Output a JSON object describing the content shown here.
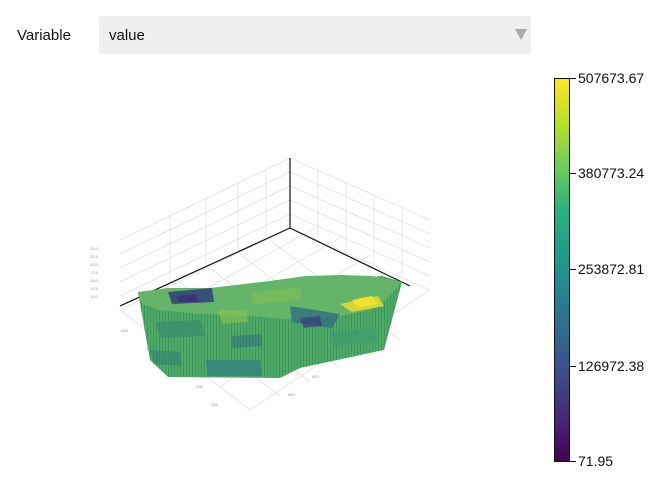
{
  "controls": {
    "variable_label": "Variable",
    "variable_value": "value"
  },
  "colorbar": {
    "colormap": "viridis",
    "min": 71.95,
    "max": 507673.67,
    "ticks": [
      "507673.67",
      "380773.24",
      "253872.81",
      "126972.38",
      "71.95"
    ]
  },
  "colors": {
    "dominant_fill": "#5bb36a",
    "high_value_patch": "#d9d73a",
    "low_value_patches": "#2e3f7c"
  }
}
